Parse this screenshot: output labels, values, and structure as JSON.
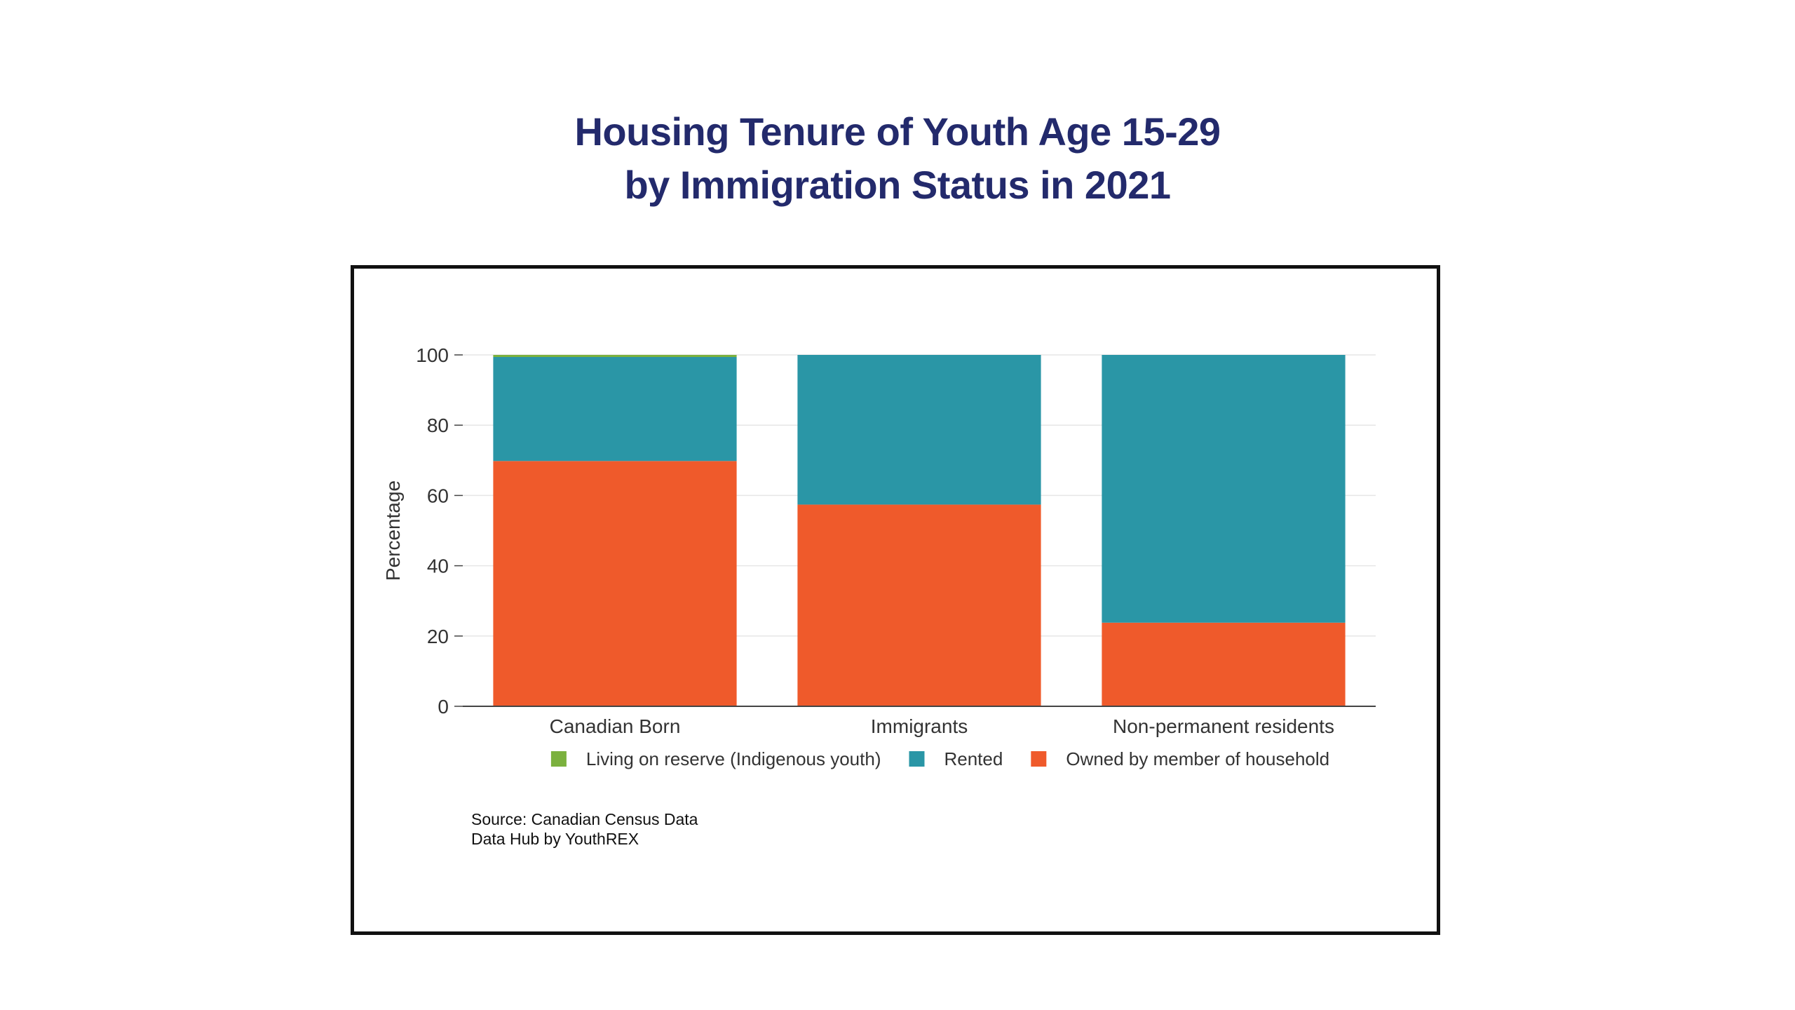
{
  "title_line1": "Housing Tenure of Youth Age 15-29",
  "title_line2": "by Immigration Status in 2021",
  "source_line1": "Source: Canadian Census Data",
  "source_line2": "Data Hub by YouthREX",
  "colors": {
    "title": "#232a6c",
    "living_on_reserve": "#7bb13e",
    "rented": "#2a96a6",
    "owned": "#ef5a2b"
  },
  "chart_data": {
    "type": "bar",
    "stacked": true,
    "title": "Housing Tenure of Youth Age 15-29 by Immigration Status in 2021",
    "xlabel": "",
    "ylabel": "Percentage",
    "ylim": [
      0,
      100
    ],
    "yticks": [
      0,
      20,
      40,
      60,
      80,
      100
    ],
    "categories": [
      "Canadian Born",
      "Immigrants",
      "Non-permanent residents"
    ],
    "series": [
      {
        "name": "Owned by member of household",
        "color": "#ef5a2b",
        "values": [
          69.8,
          57.4,
          23.8
        ]
      },
      {
        "name": "Rented",
        "color": "#2a96a6",
        "values": [
          29.6,
          42.6,
          76.2
        ]
      },
      {
        "name": "Living on reserve (Indigenous youth)",
        "color": "#7bb13e",
        "values": [
          0.6,
          0,
          0
        ]
      }
    ],
    "legend": {
      "position": "bottom",
      "order": [
        "Living on reserve (Indigenous youth)",
        "Rented",
        "Owned by member of household"
      ]
    },
    "grid": true
  }
}
